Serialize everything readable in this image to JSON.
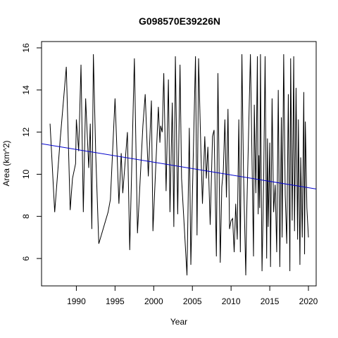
{
  "chart_data": {
    "type": "line",
    "title": "G098570E39226N",
    "xlabel": "Year",
    "ylabel": "Area (km^2)",
    "xlim": [
      1985.5,
      2021
    ],
    "ylim": [
      4.7,
      16.3
    ],
    "xticks": [
      1990,
      1995,
      2000,
      2005,
      2010,
      2015,
      2020
    ],
    "yticks": [
      6,
      8,
      10,
      12,
      14,
      16
    ],
    "grid": false,
    "legend": "none",
    "colors": {
      "series": "#000000",
      "trend": "#0000cc",
      "frame": "#000000"
    },
    "series": [
      {
        "x": [
          1986.6,
          1987.2,
          1987.9,
          1988.7,
          1989.2,
          1989.5,
          1989.9,
          1990.0,
          1990.3,
          1990.6,
          1990.9,
          1991.2,
          1991.6,
          1991.8,
          1992.0,
          1992.2,
          1992.5,
          1992.9,
          1994.1,
          1994.4,
          1995.0,
          1995.5,
          1995.8,
          1996.0,
          1996.6,
          1996.9,
          1997.5,
          1997.9,
          1998.6,
          1998.9,
          1999.3,
          1999.5,
          1999.7,
          1999.9,
          2000.6,
          2000.8,
          2000.9,
          2001.1,
          2001.3,
          2001.6,
          2001.9,
          2002.1,
          2002.4,
          2002.6,
          2002.8,
          2003.1,
          2003.4,
          2003.6,
          2004.3,
          2004.6,
          2004.8,
          2005.4,
          2005.6,
          2005.8,
          2006.1,
          2006.3,
          2006.6,
          2006.8,
          2007.0,
          2007.3,
          2007.6,
          2007.8,
          2008.1,
          2008.3,
          2008.6,
          2008.8,
          2009.0,
          2009.2,
          2009.4,
          2009.6,
          2009.8,
          2010.0,
          2010.2,
          2010.4,
          2010.6,
          2010.8,
          2011.0,
          2011.2,
          2011.4,
          2011.6,
          2011.9,
          2012.0,
          2012.5,
          2012.9,
          2013.0,
          2013.2,
          2013.4,
          2013.5,
          2013.6,
          2013.7,
          2013.8,
          2013.9,
          2014.0,
          2014.2,
          2014.4,
          2014.6,
          2014.7,
          2014.8,
          2015.0,
          2015.1,
          2015.3,
          2015.5,
          2015.7,
          2015.9,
          2016.1,
          2016.3,
          2016.5,
          2016.6,
          2016.8,
          2017.0,
          2017.2,
          2017.4,
          2017.6,
          2017.7,
          2017.9,
          2018.1,
          2018.2,
          2018.4,
          2018.6,
          2018.7,
          2018.9,
          2019.0,
          2019.2,
          2019.4,
          2019.5,
          2019.6,
          2019.8,
          2020.0
        ],
        "values": [
          12.4,
          8.2,
          11.6,
          15.1,
          8.3,
          9.8,
          10.5,
          12.6,
          11.1,
          15.2,
          8.2,
          13.6,
          10.3,
          12.4,
          7.4,
          15.7,
          11.0,
          6.7,
          8.2,
          8.8,
          13.6,
          8.6,
          11.0,
          9.1,
          12.0,
          6.4,
          15.5,
          7.2,
          12.3,
          13.8,
          9.9,
          11.7,
          13.5,
          7.3,
          13.2,
          11.5,
          12.3,
          12.0,
          14.8,
          9.2,
          14.5,
          8.2,
          13.4,
          7.5,
          15.6,
          8.1,
          15.2,
          9.8,
          5.2,
          12.2,
          5.7,
          15.6,
          7.1,
          15.5,
          11.1,
          8.6,
          11.8,
          9.8,
          11.3,
          7.6,
          11.8,
          12.1,
          6.1,
          14.8,
          5.8,
          9.4,
          10.2,
          12.6,
          8.9,
          13.1,
          7.4,
          7.8,
          7.9,
          6.3,
          8.6,
          6.9,
          12.6,
          6.3,
          15.7,
          10.2,
          5.2,
          7.8,
          15.7,
          6.1,
          13.3,
          9.1,
          15.6,
          8.1,
          10.9,
          8.4,
          15.7,
          9.6,
          5.4,
          9.4,
          15.6,
          6.0,
          11.7,
          7.5,
          11.5,
          5.6,
          13.6,
          8.2,
          9.5,
          6.3,
          14.0,
          5.6,
          12.7,
          7.0,
          15.7,
          9.0,
          6.7,
          13.8,
          5.4,
          15.5,
          7.8,
          15.6,
          7.3,
          14.1,
          6.9,
          12.6,
          5.7,
          10.8,
          7.0,
          13.9,
          6.2,
          12.5,
          8.4,
          7.0
        ]
      }
    ],
    "trend": {
      "x": [
        1985.5,
        2021
      ],
      "y": [
        11.45,
        9.3
      ]
    }
  }
}
